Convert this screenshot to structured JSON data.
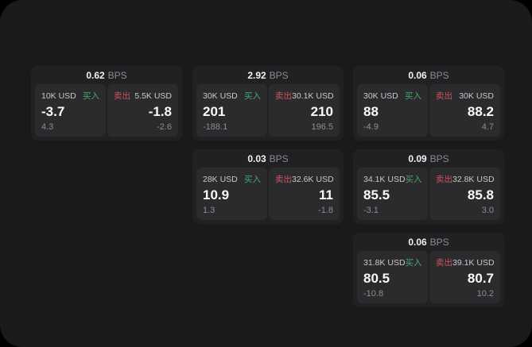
{
  "labels": {
    "bps": "BPS",
    "buy": "买入",
    "sell": "卖出"
  },
  "colors": {
    "background": "#000000",
    "panel_bg": "#1a1a1c",
    "card_bg": "#212123",
    "subpanel_bg": "#2b2b2d",
    "buy_green": "#45a86e",
    "sell_red": "#cc5360"
  },
  "cards": [
    {
      "bps": "0.62",
      "buy": {
        "size": "10K USD",
        "price": "-3.7",
        "delta": "4.3"
      },
      "sell": {
        "size": "5.5K USD",
        "price": "-1.8",
        "delta": "-2.6"
      }
    },
    {
      "bps": "2.92",
      "buy": {
        "size": "30K USD",
        "price": "201",
        "delta": "-188.1"
      },
      "sell": {
        "size": "30.1K USD",
        "price": "210",
        "delta": "196.5"
      }
    },
    {
      "bps": "0.06",
      "buy": {
        "size": "30K USD",
        "price": "88",
        "delta": "-4.9"
      },
      "sell": {
        "size": "30K USD",
        "price": "88.2",
        "delta": "4.7"
      }
    },
    {
      "bps": "0.03",
      "buy": {
        "size": "28K USD",
        "price": "10.9",
        "delta": "1.3"
      },
      "sell": {
        "size": "32.6K USD",
        "price": "11",
        "delta": "-1.8"
      }
    },
    {
      "bps": "0.09",
      "buy": {
        "size": "34.1K USD",
        "price": "85.5",
        "delta": "-3.1"
      },
      "sell": {
        "size": "32.8K USD",
        "price": "85.8",
        "delta": "3.0"
      }
    },
    {
      "bps": "0.06",
      "buy": {
        "size": "31.8K USD",
        "price": "80.5",
        "delta": "-10.8"
      },
      "sell": {
        "size": "39.1K USD",
        "price": "80.7",
        "delta": "10.2"
      }
    }
  ]
}
